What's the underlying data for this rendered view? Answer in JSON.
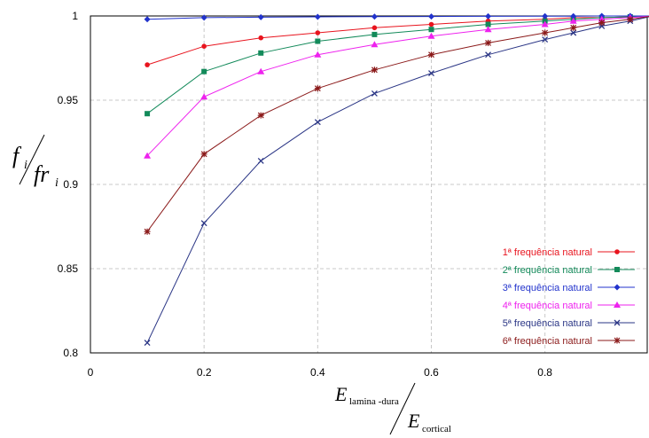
{
  "chart_data": {
    "type": "line",
    "title": "",
    "xlim": [
      0,
      0.98
    ],
    "ylim": [
      0.8,
      1.0
    ],
    "x_ticks": [
      "0",
      "0.2",
      "0.4",
      "0.6",
      "0.8"
    ],
    "y_ticks": [
      "0.8",
      "0.85",
      "0.9",
      "0.95",
      "1"
    ],
    "grid": true,
    "legend_position": "bottom-right",
    "ylabel": {
      "num_main": "f",
      "num_sub": "i",
      "den_main": "fr",
      "den_sub": "i"
    },
    "xlabel": {
      "num_main": "E",
      "num_sub": "lamina -dura",
      "den_main": "E",
      "den_sub": "cortical"
    },
    "x": [
      0.1,
      0.2,
      0.3,
      0.4,
      0.5,
      0.6,
      0.7,
      0.8,
      0.85,
      0.9,
      0.95,
      0.99
    ],
    "series": [
      {
        "name": "1ª frequência natural",
        "color": "#e8141e",
        "marker": "circle",
        "values": [
          0.971,
          0.982,
          0.987,
          0.99,
          0.993,
          0.995,
          0.997,
          0.998,
          0.999,
          0.999,
          0.9995,
          1.0
        ]
      },
      {
        "name": "2ª frequência natural",
        "color": "#138a5a",
        "marker": "square",
        "values": [
          0.942,
          0.967,
          0.978,
          0.985,
          0.989,
          0.992,
          0.995,
          0.997,
          0.998,
          0.999,
          0.9995,
          1.0
        ]
      },
      {
        "name": "3ª frequência natural",
        "color": "#2233cc",
        "marker": "diamond",
        "values": [
          0.998,
          0.999,
          0.9993,
          0.9995,
          0.9996,
          0.9997,
          0.9998,
          0.9999,
          0.9999,
          1.0,
          1.0,
          1.0
        ]
      },
      {
        "name": "4ª frequência natural",
        "color": "#ee22ee",
        "marker": "triangle",
        "values": [
          0.917,
          0.952,
          0.967,
          0.977,
          0.983,
          0.988,
          0.992,
          0.995,
          0.997,
          0.998,
          0.999,
          1.0
        ]
      },
      {
        "name": "5ª frequência natural",
        "color": "#2a3585",
        "marker": "x",
        "values": [
          0.806,
          0.877,
          0.914,
          0.937,
          0.954,
          0.966,
          0.977,
          0.986,
          0.99,
          0.994,
          0.997,
          1.0
        ]
      },
      {
        "name": "6ª frequência natural",
        "color": "#8b1a1a",
        "marker": "star",
        "values": [
          0.872,
          0.918,
          0.941,
          0.957,
          0.968,
          0.977,
          0.984,
          0.99,
          0.993,
          0.996,
          0.998,
          1.0
        ]
      }
    ]
  }
}
